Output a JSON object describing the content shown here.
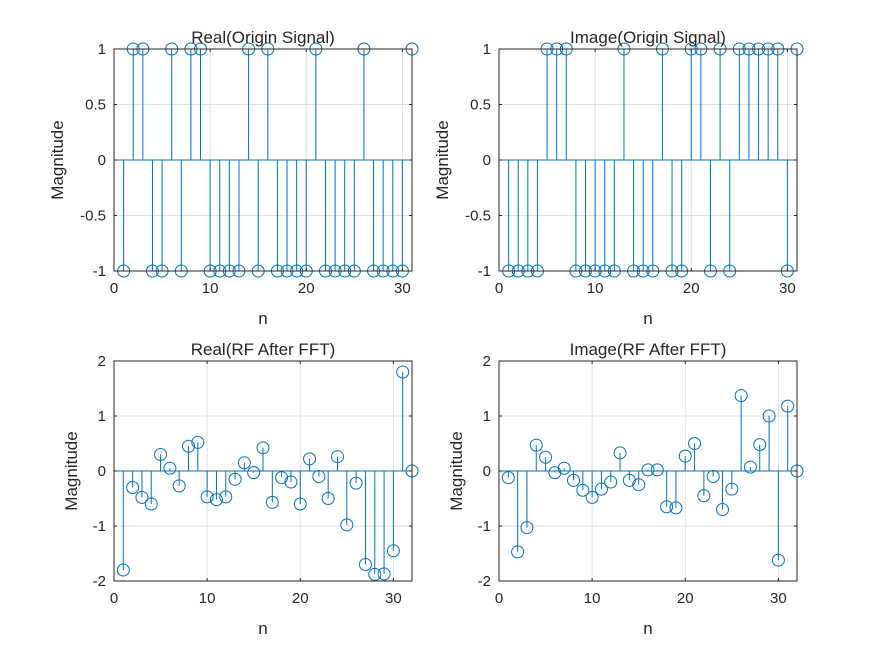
{
  "chart_data": [
    {
      "type": "stem",
      "title": "Real(Origin Signal)",
      "xlabel": "n",
      "ylabel": "Magnitude",
      "xlim": [
        0,
        31
      ],
      "ylim": [
        -1,
        1
      ],
      "xticks": [
        "0",
        "10",
        "20",
        "30"
      ],
      "yticks": [
        "-1",
        "-0.5",
        "0",
        "0.5",
        "1"
      ],
      "grid": true,
      "color": "#0072BD",
      "x": [
        1,
        2,
        3,
        4,
        5,
        6,
        7,
        8,
        9,
        10,
        11,
        12,
        13,
        14,
        15,
        16,
        17,
        18,
        19,
        20,
        21,
        22,
        23,
        24,
        25,
        26,
        27,
        28,
        29,
        30,
        31
      ],
      "values": [
        -1,
        1,
        1,
        -1,
        -1,
        1,
        -1,
        1,
        1,
        -1,
        -1,
        -1,
        -1,
        1,
        -1,
        1,
        -1,
        -1,
        -1,
        -1,
        1,
        -1,
        -1,
        -1,
        -1,
        1,
        -1,
        -1,
        -1,
        -1,
        1
      ]
    },
    {
      "type": "stem",
      "title": "Image(Origin Signal)",
      "xlabel": "n",
      "ylabel": "Magnitude",
      "xlim": [
        0,
        31
      ],
      "ylim": [
        -1,
        1
      ],
      "xticks": [
        "0",
        "10",
        "20",
        "30"
      ],
      "yticks": [
        "-1",
        "-0.5",
        "0",
        "0.5",
        "1"
      ],
      "grid": true,
      "color": "#0072BD",
      "x": [
        1,
        2,
        3,
        4,
        5,
        6,
        7,
        8,
        9,
        10,
        11,
        12,
        13,
        14,
        15,
        16,
        17,
        18,
        19,
        20,
        21,
        22,
        23,
        24,
        25,
        26,
        27,
        28,
        29,
        30,
        31
      ],
      "values": [
        -1,
        -1,
        -1,
        -1,
        1,
        1,
        1,
        -1,
        -1,
        -1,
        -1,
        -1,
        1,
        -1,
        -1,
        -1,
        1,
        -1,
        -1,
        1,
        1,
        -1,
        1,
        -1,
        1,
        1,
        1,
        1,
        1,
        -1,
        1
      ]
    },
    {
      "type": "stem",
      "title": "Real(RF After FFT)",
      "xlabel": "n",
      "ylabel": "Magnitude",
      "xlim": [
        0,
        32
      ],
      "ylim": [
        -2,
        2
      ],
      "xticks": [
        "0",
        "10",
        "20",
        "30"
      ],
      "yticks": [
        "-2",
        "-1",
        "0",
        "1",
        "2"
      ],
      "grid": true,
      "color": "#0072BD",
      "x": [
        1,
        2,
        3,
        4,
        5,
        6,
        7,
        8,
        9,
        10,
        11,
        12,
        13,
        14,
        15,
        16,
        17,
        18,
        19,
        20,
        21,
        22,
        23,
        24,
        25,
        26,
        27,
        28,
        29,
        30,
        31,
        32
      ],
      "values": [
        -1.8,
        -0.3,
        -0.48,
        -0.6,
        0.3,
        0.05,
        -0.27,
        0.45,
        0.52,
        -0.47,
        -0.52,
        -0.47,
        -0.15,
        0.15,
        -0.03,
        0.42,
        -0.57,
        -0.12,
        -0.2,
        -0.6,
        0.22,
        -0.1,
        -0.5,
        0.26,
        -0.98,
        -0.22,
        -1.7,
        -1.88,
        -1.87,
        -1.45,
        1.8,
        0.0
      ]
    },
    {
      "type": "stem",
      "title": "Image(RF After FFT)",
      "xlabel": "n",
      "ylabel": "Magnitude",
      "xlim": [
        0,
        32
      ],
      "ylim": [
        -2,
        2
      ],
      "xticks": [
        "0",
        "10",
        "20",
        "30"
      ],
      "yticks": [
        "-2",
        "-1",
        "0",
        "1",
        "2"
      ],
      "grid": true,
      "color": "#0072BD",
      "x": [
        1,
        2,
        3,
        4,
        5,
        6,
        7,
        8,
        9,
        10,
        11,
        12,
        13,
        14,
        15,
        16,
        17,
        18,
        19,
        20,
        21,
        22,
        23,
        24,
        25,
        26,
        27,
        28,
        29,
        30,
        31,
        32
      ],
      "values": [
        -0.12,
        -1.47,
        -1.03,
        0.47,
        0.25,
        -0.03,
        0.05,
        -0.17,
        -0.35,
        -0.48,
        -0.33,
        -0.2,
        0.33,
        -0.17,
        -0.25,
        0.02,
        0.02,
        -0.65,
        -0.67,
        0.27,
        0.5,
        -0.45,
        -0.1,
        -0.7,
        -0.33,
        1.37,
        0.07,
        0.48,
        1.0,
        -1.62,
        1.18,
        0.0
      ]
    }
  ]
}
